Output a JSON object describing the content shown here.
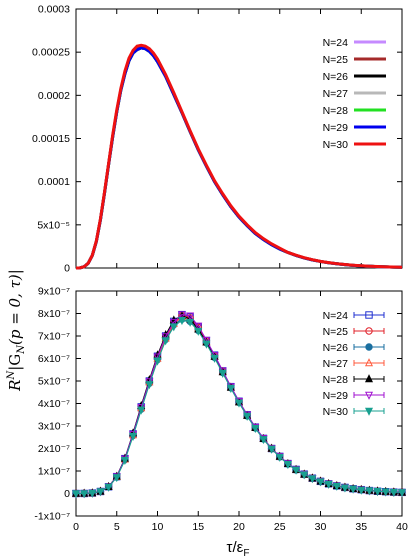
{
  "chart_data": [
    {
      "type": "line",
      "panel": "top",
      "ylim": [
        0,
        0.0003
      ],
      "xlim": [
        0,
        40
      ],
      "yticks": [
        "0",
        "5x10⁻⁵",
        "0.0001",
        "0.00015",
        "0.0002",
        "0.00025",
        "0.0003"
      ],
      "ytick_values": [
        0,
        5e-05,
        0.0001,
        0.00015,
        0.0002,
        0.00025,
        0.0003
      ],
      "x": [
        0,
        0.5,
        1,
        1.5,
        2,
        2.5,
        3,
        3.5,
        4,
        4.5,
        5,
        5.5,
        6,
        6.5,
        7,
        7.5,
        8,
        8.5,
        9,
        9.5,
        10,
        11,
        12,
        13,
        14,
        15,
        16,
        17,
        18,
        19,
        20,
        21,
        22,
        23,
        24,
        25,
        26,
        27,
        28,
        29,
        30,
        31,
        32,
        33,
        34,
        35,
        36,
        37,
        38,
        39,
        40
      ],
      "series": [
        {
          "name": "N=24",
          "color": "#c58aff",
          "values": [
            0,
            2e-07,
            1.5e-06,
            5.5e-06,
            1.45e-05,
            3.1e-05,
            5.6e-05,
            8.7e-05,
            0.00012,
            0.000152,
            0.000181,
            0.000206,
            0.000225,
            0.00024,
            0.000249,
            0.000253,
            0.000255,
            0.000254,
            0.000251,
            0.000246,
            0.000239,
            0.000222,
            0.000201,
            0.00018,
            0.000158,
            0.000137,
            0.000118,
            0.0001,
            8.5e-05,
            7.1e-05,
            5.9e-05,
            4.9e-05,
            4e-05,
            3.3e-05,
            2.7e-05,
            2.2e-05,
            1.8e-05,
            1.45e-05,
            1.17e-05,
            9.4e-06,
            7.6e-06,
            6.1e-06,
            4.9e-06,
            3.9e-06,
            3.1e-06,
            2.5e-06,
            2e-06,
            1.6e-06,
            1.3e-06,
            1e-06,
            8e-07
          ]
        },
        {
          "name": "N=25",
          "color": "#a52a2a",
          "values": [
            0,
            2e-07,
            1.5e-06,
            5.5e-06,
            1.45e-05,
            3.1e-05,
            5.6e-05,
            8.7e-05,
            0.00012,
            0.000152,
            0.000181,
            0.000206,
            0.000225,
            0.00024,
            0.000249,
            0.000253,
            0.000255,
            0.000254,
            0.000251,
            0.000246,
            0.000239,
            0.000222,
            0.000201,
            0.00018,
            0.000158,
            0.000137,
            0.000118,
            0.0001,
            8.5e-05,
            7.1e-05,
            5.9e-05,
            4.9e-05,
            4e-05,
            3.3e-05,
            2.7e-05,
            2.2e-05,
            1.8e-05,
            1.45e-05,
            1.17e-05,
            9.4e-06,
            7.6e-06,
            6.1e-06,
            4.9e-06,
            3.9e-06,
            3.1e-06,
            2.5e-06,
            2e-06,
            1.6e-06,
            1.3e-06,
            1e-06,
            8e-07
          ]
        },
        {
          "name": "N=26",
          "color": "#000000",
          "values": [
            0,
            2e-07,
            1.5e-06,
            5.5e-06,
            1.45e-05,
            3.1e-05,
            5.6e-05,
            8.7e-05,
            0.00012,
            0.000152,
            0.000181,
            0.000206,
            0.000225,
            0.00024,
            0.000249,
            0.000253,
            0.000255,
            0.000254,
            0.000251,
            0.000246,
            0.000239,
            0.000222,
            0.000201,
            0.00018,
            0.000158,
            0.000137,
            0.000118,
            0.0001,
            8.5e-05,
            7.1e-05,
            5.9e-05,
            4.9e-05,
            4e-05,
            3.3e-05,
            2.7e-05,
            2.2e-05,
            1.8e-05,
            1.45e-05,
            1.17e-05,
            9.4e-06,
            7.6e-06,
            6.1e-06,
            4.9e-06,
            3.9e-06,
            3.1e-06,
            2.5e-06,
            2e-06,
            1.6e-06,
            1.3e-06,
            1e-06,
            8e-07
          ]
        },
        {
          "name": "N=27",
          "color": "#b8b8b8",
          "values": [
            0,
            2e-07,
            1.5e-06,
            5.5e-06,
            1.45e-05,
            3.1e-05,
            5.6e-05,
            8.7e-05,
            0.00012,
            0.000152,
            0.000181,
            0.000206,
            0.000225,
            0.00024,
            0.000249,
            0.000253,
            0.000255,
            0.000254,
            0.000251,
            0.000246,
            0.000239,
            0.000222,
            0.000201,
            0.00018,
            0.000158,
            0.000137,
            0.000118,
            0.0001,
            8.5e-05,
            7.1e-05,
            5.9e-05,
            4.9e-05,
            4e-05,
            3.3e-05,
            2.7e-05,
            2.2e-05,
            1.8e-05,
            1.45e-05,
            1.17e-05,
            9.4e-06,
            7.6e-06,
            6.1e-06,
            4.9e-06,
            3.9e-06,
            3.1e-06,
            2.5e-06,
            2e-06,
            1.6e-06,
            1.3e-06,
            1e-06,
            8e-07
          ]
        },
        {
          "name": "N=28",
          "color": "#22e022",
          "values": [
            0,
            2e-07,
            1.5e-06,
            5.5e-06,
            1.45e-05,
            3.1e-05,
            5.6e-05,
            8.7e-05,
            0.00012,
            0.000152,
            0.000181,
            0.000206,
            0.000225,
            0.00024,
            0.000249,
            0.000253,
            0.000255,
            0.000254,
            0.000251,
            0.000246,
            0.000239,
            0.000222,
            0.000201,
            0.00018,
            0.000158,
            0.000137,
            0.000118,
            0.0001,
            8.5e-05,
            7.1e-05,
            5.9e-05,
            4.9e-05,
            4e-05,
            3.3e-05,
            2.7e-05,
            2.2e-05,
            1.8e-05,
            1.45e-05,
            1.17e-05,
            9.4e-06,
            7.6e-06,
            6.1e-06,
            4.9e-06,
            3.9e-06,
            3.1e-06,
            2.5e-06,
            2e-06,
            1.6e-06,
            1.3e-06,
            1e-06,
            8e-07
          ]
        },
        {
          "name": "N=29",
          "color": "#0000ee",
          "values": [
            0,
            2e-07,
            1.5e-06,
            5.5e-06,
            1.45e-05,
            3.1e-05,
            5.6e-05,
            8.7e-05,
            0.00012,
            0.000152,
            0.000181,
            0.000206,
            0.000225,
            0.00024,
            0.000249,
            0.000253,
            0.000255,
            0.000254,
            0.000251,
            0.000246,
            0.000239,
            0.000222,
            0.000201,
            0.00018,
            0.000158,
            0.000137,
            0.000118,
            0.0001,
            8.5e-05,
            7.1e-05,
            5.9e-05,
            4.9e-05,
            4e-05,
            3.3e-05,
            2.7e-05,
            2.2e-05,
            1.8e-05,
            1.45e-05,
            1.17e-05,
            9.4e-06,
            7.6e-06,
            6.1e-06,
            4.9e-06,
            3.9e-06,
            3.1e-06,
            2.5e-06,
            2e-06,
            1.6e-06,
            1.3e-06,
            1e-06,
            8e-07
          ]
        },
        {
          "name": "N=30",
          "color": "#ee1111",
          "values": [
            0,
            2e-07,
            1.5e-06,
            5.6e-06,
            1.47e-05,
            3.15e-05,
            5.7e-05,
            8.8e-05,
            0.000121,
            0.000154,
            0.000183,
            0.000208,
            0.000228,
            0.000243,
            0.000252,
            0.000257,
            0.000258,
            0.000257,
            0.000254,
            0.000249,
            0.000242,
            0.000224,
            0.000203,
            0.000181,
            0.000159,
            0.000138,
            0.000119,
            0.000101,
            8.6e-05,
            7.2e-05,
            6e-05,
            5e-05,
            4.1e-05,
            3.4e-05,
            2.8e-05,
            2.3e-05,
            1.8e-05,
            1.48e-05,
            1.19e-05,
            9.6e-06,
            7.7e-06,
            6.2e-06,
            5e-06,
            4e-06,
            3.2e-06,
            2.6e-06,
            2.1e-06,
            1.7e-06,
            1.3e-06,
            1.1e-06,
            8e-07
          ]
        }
      ],
      "grid": false,
      "legend": "top-right"
    },
    {
      "type": "line",
      "panel": "bottom",
      "markers": true,
      "ylim": [
        -1e-07,
        9e-07
      ],
      "xlim": [
        0,
        40
      ],
      "xticks": [
        "0",
        "5",
        "10",
        "15",
        "20",
        "25",
        "30",
        "35",
        "40"
      ],
      "xtick_values": [
        0,
        5,
        10,
        15,
        20,
        25,
        30,
        35,
        40
      ],
      "yticks": [
        "-1x10⁻⁷",
        "0",
        "1x10⁻⁷",
        "2x10⁻⁷",
        "3x10⁻⁷",
        "4x10⁻⁷",
        "5x10⁻⁷",
        "6x10⁻⁷",
        "7x10⁻⁷",
        "8x10⁻⁷",
        "9x10⁻⁷"
      ],
      "ytick_values": [
        -1e-07,
        0,
        1e-07,
        2e-07,
        3e-07,
        4e-07,
        5e-07,
        6e-07,
        7e-07,
        8e-07,
        9e-07
      ],
      "x": [
        0,
        1,
        2,
        3,
        4,
        5,
        6,
        7,
        8,
        9,
        10,
        11,
        12,
        13,
        14,
        15,
        16,
        17,
        18,
        19,
        20,
        21,
        22,
        23,
        24,
        25,
        26,
        27,
        28,
        29,
        30,
        31,
        32,
        33,
        34,
        35,
        36,
        37,
        38,
        39,
        40
      ],
      "series": [
        {
          "name": "N=24",
          "color": "#1f2fd0",
          "marker": "square",
          "values": [
            0,
            2e-10,
            2e-09,
            9e-09,
            3e-08,
            7.5e-08,
            1.55e-07,
            2.65e-07,
            3.85e-07,
            5e-07,
            6.1e-07,
            7e-07,
            7.65e-07,
            7.95e-07,
            7.85e-07,
            7.4e-07,
            6.8e-07,
            6.15e-07,
            5.45e-07,
            4.75e-07,
            4.1e-07,
            3.5e-07,
            2.95e-07,
            2.45e-07,
            2e-07,
            1.65e-07,
            1.33e-07,
            1.07e-07,
            8.6e-08,
            6.8e-08,
            5.4e-08,
            4.3e-08,
            3.4e-08,
            2.7e-08,
            2.1e-08,
            1.7e-08,
            1.3e-08,
            1e-08,
            8e-09,
            6e-09,
            5e-09
          ]
        },
        {
          "name": "N=25",
          "color": "#e0202a",
          "marker": "circle",
          "values": [
            0,
            2e-10,
            2e-09,
            9e-09,
            3e-08,
            7.4e-08,
            1.53e-07,
            2.62e-07,
            3.8e-07,
            4.95e-07,
            6.05e-07,
            6.95e-07,
            7.6e-07,
            7.9e-07,
            7.8e-07,
            7.38e-07,
            6.78e-07,
            6.12e-07,
            5.43e-07,
            4.73e-07,
            4.08e-07,
            3.48e-07,
            2.93e-07,
            2.44e-07,
            2e-07,
            1.64e-07,
            1.32e-07,
            1.06e-07,
            8.5e-08,
            6.8e-08,
            5.4e-08,
            4.3e-08,
            3.4e-08,
            2.7e-08,
            2.1e-08,
            1.7e-08,
            1.3e-08,
            1e-08,
            8e-09,
            6e-09,
            5e-09
          ]
        },
        {
          "name": "N=26",
          "color": "#1a6fa0",
          "marker": "dot",
          "values": [
            0,
            2e-10,
            2e-09,
            9e-09,
            2.9e-08,
            7.3e-08,
            1.5e-07,
            2.58e-07,
            3.75e-07,
            4.9e-07,
            5.95e-07,
            6.85e-07,
            7.5e-07,
            7.75e-07,
            7.65e-07,
            7.25e-07,
            6.7e-07,
            6.05e-07,
            5.38e-07,
            4.7e-07,
            4.05e-07,
            3.45e-07,
            2.91e-07,
            2.42e-07,
            1.99e-07,
            1.63e-07,
            1.31e-07,
            1.05e-07,
            8.4e-08,
            6.7e-08,
            5.3e-08,
            4.2e-08,
            3.3e-08,
            2.6e-08,
            2.1e-08,
            1.6e-08,
            1.3e-08,
            1e-08,
            8e-09,
            6e-09,
            5e-09
          ]
        },
        {
          "name": "N=27",
          "color": "#ff5a3c",
          "marker": "triangle-up",
          "values": [
            0,
            2e-10,
            2e-09,
            9e-09,
            3e-08,
            7.4e-08,
            1.52e-07,
            2.6e-07,
            3.8e-07,
            4.95e-07,
            6e-07,
            6.9e-07,
            7.55e-07,
            7.85e-07,
            7.75e-07,
            7.35e-07,
            6.75e-07,
            6.1e-07,
            5.42e-07,
            4.72e-07,
            4.07e-07,
            3.47e-07,
            2.92e-07,
            2.43e-07,
            2e-07,
            1.64e-07,
            1.32e-07,
            1.06e-07,
            8.5e-08,
            6.8e-08,
            5.4e-08,
            4.3e-08,
            3.4e-08,
            2.7e-08,
            2.1e-08,
            1.7e-08,
            1.3e-08,
            1e-08,
            8e-09,
            6e-09,
            5e-09
          ]
        },
        {
          "name": "N=28",
          "color": "#000000",
          "marker": "triangle-up-filled",
          "values": [
            0,
            2e-10,
            2e-09,
            9e-09,
            3e-08,
            7.6e-08,
            1.56e-07,
            2.68e-07,
            3.9e-07,
            5.05e-07,
            6.15e-07,
            7.05e-07,
            7.7e-07,
            7.9e-07,
            7.75e-07,
            7.3e-07,
            6.72e-07,
            6.08e-07,
            5.4e-07,
            4.71e-07,
            4.06e-07,
            3.46e-07,
            2.92e-07,
            2.43e-07,
            2e-07,
            1.64e-07,
            1.32e-07,
            1.06e-07,
            8.5e-08,
            6.8e-08,
            5.4e-08,
            4.3e-08,
            3.4e-08,
            2.7e-08,
            2.1e-08,
            1.7e-08,
            1.3e-08,
            1e-08,
            8e-09,
            6e-09,
            5e-09
          ]
        },
        {
          "name": "N=29",
          "color": "#a010d0",
          "marker": "triangle-down",
          "values": [
            0,
            2e-10,
            2e-09,
            9e-09,
            3e-08,
            7.5e-08,
            1.54e-07,
            2.64e-07,
            3.83e-07,
            4.98e-07,
            6.08e-07,
            6.98e-07,
            7.62e-07,
            7.95e-07,
            7.9e-07,
            7.45e-07,
            6.82e-07,
            6.14e-07,
            5.45e-07,
            4.75e-07,
            4.1e-07,
            3.5e-07,
            2.95e-07,
            2.45e-07,
            2e-07,
            1.65e-07,
            1.33e-07,
            1.07e-07,
            8.6e-08,
            6.8e-08,
            5.4e-08,
            4.3e-08,
            3.4e-08,
            2.7e-08,
            2.1e-08,
            1.7e-08,
            1.3e-08,
            1e-08,
            8e-09,
            6e-09,
            5e-09
          ]
        },
        {
          "name": "N=30",
          "color": "#18a090",
          "marker": "triangle-down-filled",
          "values": [
            0,
            2e-10,
            2e-09,
            9e-09,
            2.9e-08,
            7.2e-08,
            1.48e-07,
            2.55e-07,
            3.72e-07,
            4.85e-07,
            5.9e-07,
            6.8e-07,
            7.42e-07,
            7.7e-07,
            7.62e-07,
            7.22e-07,
            6.65e-07,
            6.02e-07,
            5.35e-07,
            4.68e-07,
            4.03e-07,
            3.44e-07,
            2.9e-07,
            2.41e-07,
            1.98e-07,
            1.62e-07,
            1.3e-07,
            1.05e-07,
            8.4e-08,
            6.7e-08,
            5.3e-08,
            4.2e-08,
            3.3e-08,
            2.6e-08,
            2.1e-08,
            1.6e-08,
            1.3e-08,
            1e-08,
            8e-09,
            6e-09,
            5e-09
          ]
        }
      ],
      "grid": false,
      "legend": "top-right"
    }
  ],
  "labels": {
    "xlabel": "τ/ε",
    "xlabel_sub": "F",
    "ylabel": "R",
    "ylabel_sup": "N",
    "ylabel_rest": "|G",
    "ylabel_sub": "N",
    "ylabel_tail": "(p = 0, τ)|"
  }
}
